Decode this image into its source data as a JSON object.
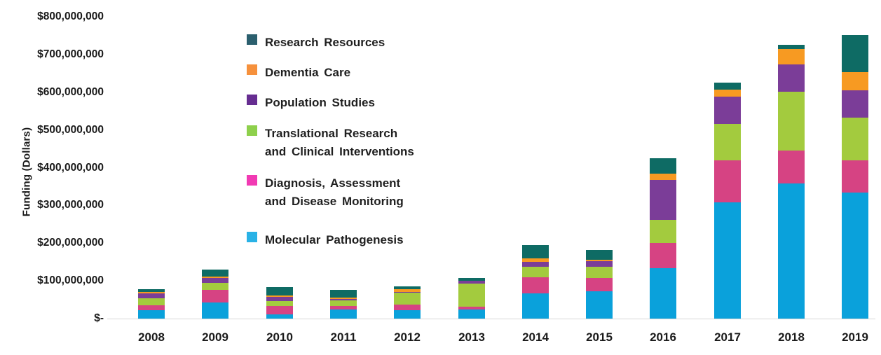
{
  "chart_data": {
    "type": "bar",
    "stacked": true,
    "title": "",
    "xlabel": "",
    "ylabel": "Funding (Dollars)",
    "ylim_dollars": [
      0,
      800000000
    ],
    "y_tick_labels": [
      "$800,000,000",
      "$700,000,000",
      "$600,000,000",
      "$500,000,000",
      "$400,000,000",
      "$300,000,000",
      "$200,000,000",
      "$100,000,000",
      "$-"
    ],
    "grid": "off",
    "legend_position": "upper-left-inside",
    "values_unit": "millions of dollars (estimated from pixel heights)",
    "categories": [
      "2008",
      "2009",
      "2010",
      "2011",
      "2012",
      "2013",
      "2014",
      "2015",
      "2016",
      "2017",
      "2018",
      "2019"
    ],
    "series": [
      {
        "name": "Molecular Pathogenesis",
        "color": "#0aa1db",
        "legend_color": "#29b2e6",
        "values": [
          22,
          42,
          12,
          24,
          23,
          24,
          67,
          73,
          133,
          308,
          359,
          334
        ]
      },
      {
        "name": "Diagnosis, Assessment and Disease Monitoring",
        "color": "#d64383",
        "legend_color": "#f13ab3",
        "values": [
          13,
          34,
          22,
          10,
          15,
          8,
          43,
          35,
          68,
          111,
          87,
          85
        ]
      },
      {
        "name": "Translational Research and Clinical Interventions",
        "color": "#a3cb3e",
        "legend_color": "#8ed04c",
        "values": [
          18,
          18,
          13,
          15,
          32,
          60,
          27,
          30,
          60,
          97,
          156,
          113
        ]
      },
      {
        "name": "Population Studies",
        "color": "#7b3d98",
        "legend_color": "#662d91",
        "values": [
          14,
          13,
          11,
          3,
          1,
          9,
          14,
          15,
          106,
          73,
          72,
          73
        ]
      },
      {
        "name": "Dementia Care",
        "color": "#f79a22",
        "legend_color": "#f6913c",
        "values": [
          3,
          5,
          3,
          4,
          7,
          0,
          8,
          3,
          18,
          18,
          40,
          49
        ]
      },
      {
        "name": "Research Resources",
        "color": "#0e6b64",
        "legend_color": "#2b5f6e",
        "values": [
          8,
          18,
          23,
          21,
          8,
          7,
          36,
          25,
          40,
          18,
          12,
          97
        ]
      }
    ],
    "legend_items_top_to_bottom": [
      {
        "series": "Research Resources",
        "lines": [
          "Research Resources"
        ]
      },
      {
        "series": "Dementia Care",
        "lines": [
          "Dementia Care"
        ]
      },
      {
        "series": "Population Studies",
        "lines": [
          "Population Studies"
        ]
      },
      {
        "series": "Translational Research and Clinical Interventions",
        "lines": [
          "Translational Research",
          "and Clinical Interventions"
        ]
      },
      {
        "series": "Diagnosis, Assessment and Disease Monitoring",
        "lines": [
          "Diagnosis, Assessment",
          "and Disease Monitoring"
        ]
      },
      {
        "series": "Molecular Pathogenesis",
        "lines": [
          "Molecular Pathogenesis"
        ]
      }
    ]
  }
}
